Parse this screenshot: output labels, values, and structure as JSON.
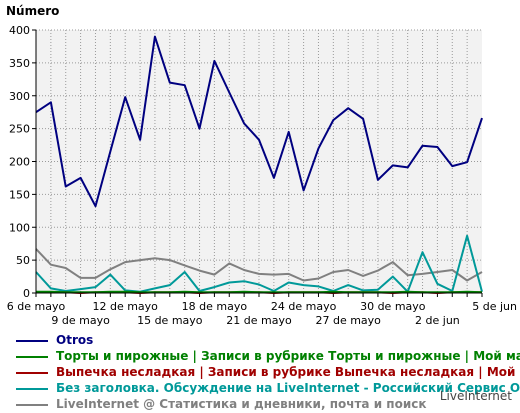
{
  "chart_data": {
    "type": "line",
    "ylabel": "Número",
    "ylim": [
      0,
      400
    ],
    "yticks": [
      0,
      50,
      100,
      150,
      200,
      250,
      300,
      350,
      400
    ],
    "grid": true,
    "x": [
      "6 may",
      "7 may",
      "8 may",
      "9 may",
      "10 may",
      "11 may",
      "12 may",
      "13 may",
      "14 may",
      "15 may",
      "16 may",
      "17 may",
      "18 may",
      "19 may",
      "20 may",
      "21 may",
      "22 may",
      "23 may",
      "24 may",
      "25 may",
      "26 may",
      "27 may",
      "28 may",
      "29 may",
      "30 may",
      "31 may",
      "1 jun",
      "2 jun",
      "3 jun",
      "4 jun",
      "5 jun"
    ],
    "xtick_labels_row1": [
      {
        "index": 0,
        "label": "6 de mayo"
      },
      {
        "index": 6,
        "label": "12 de mayo"
      },
      {
        "index": 12,
        "label": "18 de mayo"
      },
      {
        "index": 18,
        "label": "24 de mayo"
      },
      {
        "index": 24,
        "label": "30 de mayo"
      },
      {
        "index": 30,
        "label": "5 de jun"
      }
    ],
    "xtick_labels_row2": [
      {
        "index": 3,
        "label": "9 de mayo"
      },
      {
        "index": 9,
        "label": "15 de mayo"
      },
      {
        "index": 15,
        "label": "21 de mayo"
      },
      {
        "index": 21,
        "label": "27 de mayo"
      },
      {
        "index": 27,
        "label": "2 de jun"
      }
    ],
    "series": [
      {
        "name": "Otros",
        "color": "#000080",
        "values": [
          275,
          290,
          162,
          175,
          132,
          215,
          298,
          233,
          390,
          320,
          316,
          250,
          353,
          305,
          258,
          233,
          175,
          245,
          156,
          220,
          263,
          281,
          265,
          172,
          194,
          191,
          224,
          222,
          193,
          199,
          266
        ]
      },
      {
        "name": "Торты и пирожные | Записи в рубрике Торты и пирожные | Мой мале",
        "color": "#008000",
        "values": [
          2,
          2,
          1,
          1,
          1,
          2,
          2,
          1,
          1,
          1,
          2,
          1,
          1,
          1,
          2,
          1,
          1,
          1,
          1,
          1,
          2,
          1,
          1,
          1,
          1,
          2,
          1,
          1,
          1,
          2,
          1
        ]
      },
      {
        "name": "Выпечка несладкая | Записи в рубрике Выпечка несладкая | Мой ма",
        "color": "#a00000",
        "values": [
          1,
          1,
          1,
          0,
          1,
          1,
          1,
          0,
          1,
          1,
          1,
          0,
          1,
          1,
          1,
          1,
          0,
          1,
          1,
          1,
          0,
          1,
          1,
          1,
          0,
          1,
          1,
          0,
          1,
          1,
          1
        ]
      },
      {
        "name": "Без заголовка. Обсуждение на LiveInternet - Российский Сервис Онла",
        "color": "#009999",
        "values": [
          32,
          7,
          3,
          6,
          9,
          28,
          4,
          2,
          7,
          12,
          32,
          3,
          9,
          16,
          18,
          13,
          3,
          16,
          12,
          10,
          3,
          12,
          4,
          5,
          25,
          2,
          62,
          14,
          3,
          87,
          2
        ]
      },
      {
        "name": "LiveInternet @ Статистика и дневники, почта и поиск",
        "color": "#808080",
        "values": [
          67,
          43,
          38,
          23,
          23,
          36,
          47,
          50,
          53,
          50,
          42,
          34,
          28,
          45,
          35,
          29,
          28,
          29,
          19,
          22,
          32,
          35,
          26,
          34,
          47,
          27,
          29,
          32,
          35,
          19,
          32
        ]
      }
    ]
  },
  "footer": "LiveInternet"
}
